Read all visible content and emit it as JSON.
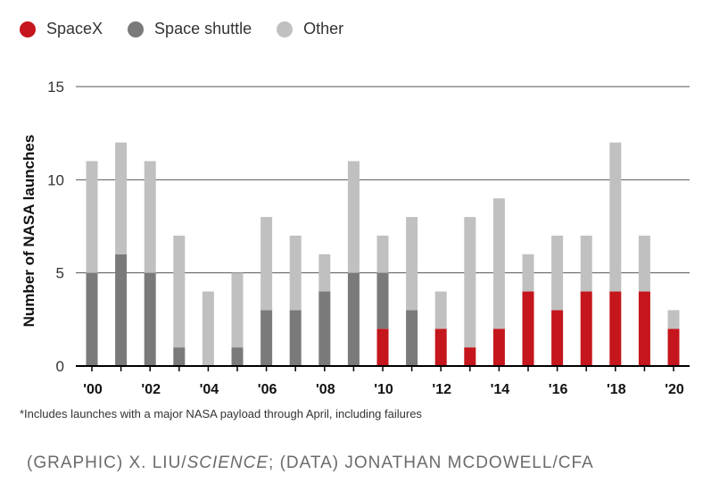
{
  "legend": [
    {
      "label": "SpaceX",
      "color": "#c4161c"
    },
    {
      "label": "Space shuttle",
      "color": "#7a7a7a"
    },
    {
      "label": "Other",
      "color": "#c0c0c0"
    }
  ],
  "footnote": "*Includes launches with a major NASA payload through April, including failures",
  "credit": {
    "part1": "(GRAPHIC) X. LIU/",
    "part2": "SCIENCE",
    "part3": "; (DATA) JONATHAN MCDOWELL/CFA"
  },
  "chart_data": {
    "type": "bar",
    "stacked": true,
    "title": "",
    "xlabel": "",
    "ylabel": "Number of NASA launches",
    "ylim": [
      0,
      15
    ],
    "yticks": [
      0,
      5,
      10,
      15
    ],
    "grid": true,
    "years": [
      "2000",
      "2001",
      "2002",
      "2003",
      "2004",
      "2005",
      "2006",
      "2007",
      "2008",
      "2009",
      "2010",
      "2011",
      "2012",
      "2013",
      "2014",
      "2015",
      "2016",
      "2017",
      "2018",
      "2019",
      "2020"
    ],
    "tick_labels": [
      "'00",
      "",
      "'02",
      "",
      "'04",
      "",
      "'06",
      "",
      "'08",
      "",
      "'10",
      "",
      "'12",
      "",
      "'14",
      "",
      "'16",
      "",
      "'18",
      "",
      "'20"
    ],
    "series": [
      {
        "name": "SpaceX",
        "color": "#c4161c",
        "values": [
          0,
          0,
          0,
          0,
          0,
          0,
          0,
          0,
          0,
          0,
          2,
          0,
          2,
          1,
          2,
          4,
          3,
          4,
          4,
          4,
          2
        ]
      },
      {
        "name": "Space shuttle",
        "color": "#7a7a7a",
        "values": [
          5,
          6,
          5,
          1,
          0,
          1,
          3,
          3,
          4,
          5,
          3,
          3,
          0,
          0,
          0,
          0,
          0,
          0,
          0,
          0,
          0
        ]
      },
      {
        "name": "Other",
        "color": "#c0c0c0",
        "values": [
          6,
          6,
          6,
          6,
          4,
          4,
          5,
          4,
          2,
          6,
          2,
          5,
          2,
          7,
          7,
          2,
          4,
          3,
          8,
          3,
          1
        ]
      }
    ]
  }
}
